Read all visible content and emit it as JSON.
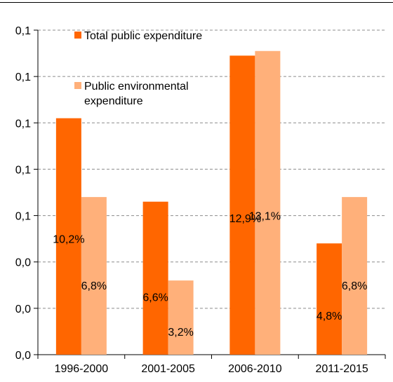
{
  "chart_data": {
    "type": "bar",
    "categories": [
      "1996-2000",
      "2001-2005",
      "2006-2010",
      "2011-2015"
    ],
    "y_tick_labels": [
      "0,0",
      "0,0",
      "0,0",
      "0,1",
      "0,1",
      "0,1",
      "0,1",
      "0,1"
    ],
    "ylim": [
      0,
      14
    ],
    "grid": "horizontal dashed",
    "legend_position": "top-left",
    "series": [
      {
        "name": "Total public expenditure",
        "color": "#FF6600",
        "values": [
          10.2,
          6.6,
          12.9,
          4.8
        ],
        "labels": [
          "10,2%",
          "6,6%",
          "12,9%",
          "4,8%"
        ]
      },
      {
        "name": "Public environmental expenditure",
        "name_lines": [
          "Public environmental",
          "expenditure"
        ],
        "color": "#FFB07A",
        "values": [
          6.8,
          3.2,
          13.1,
          6.8
        ],
        "labels": [
          "6,8%",
          "3,2%",
          "13,1%",
          "6,8%"
        ]
      }
    ]
  }
}
